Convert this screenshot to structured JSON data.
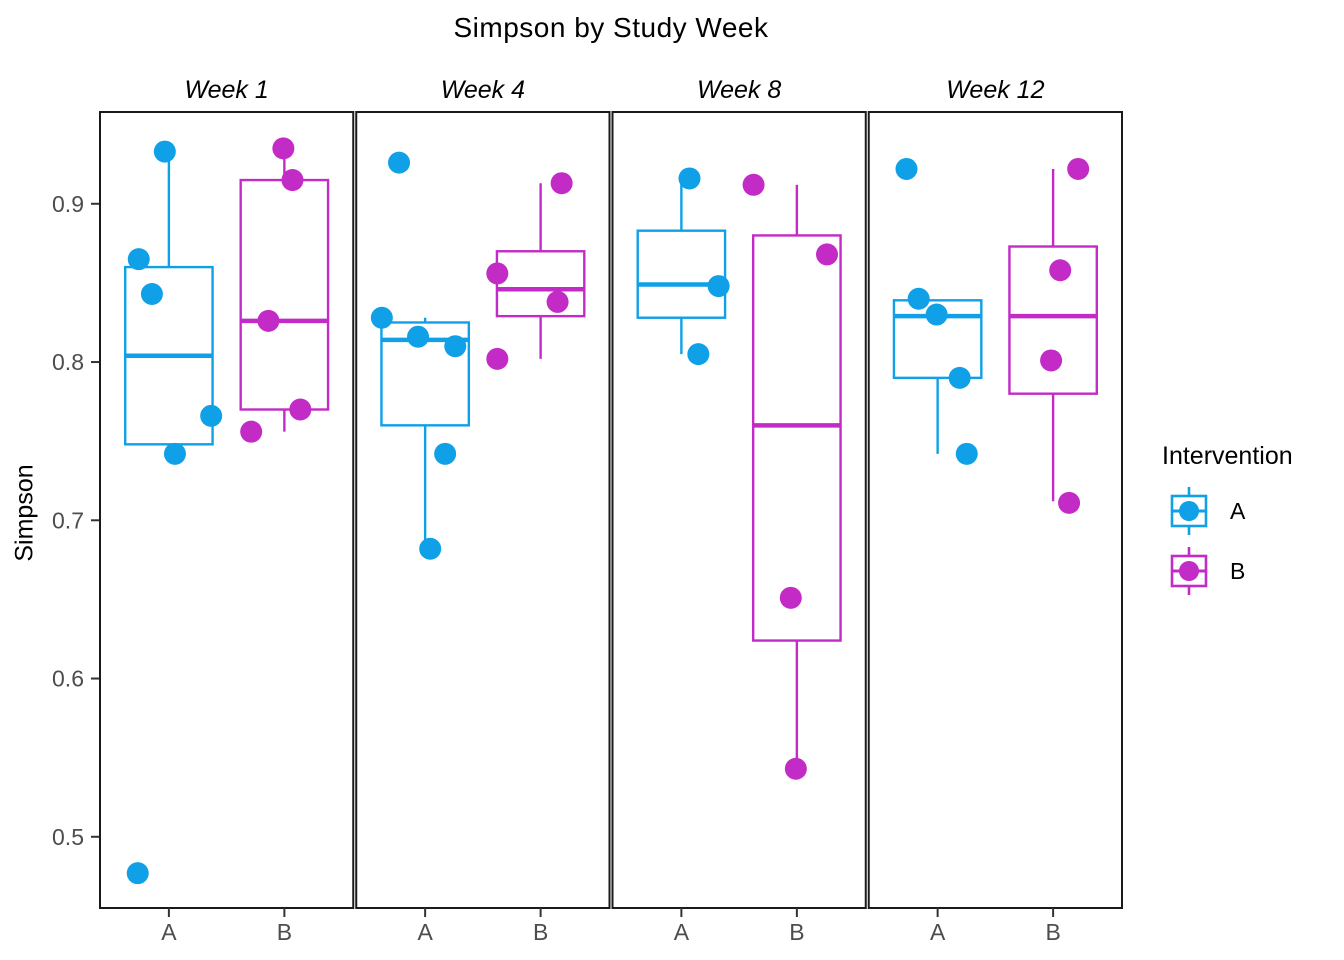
{
  "chart_data": {
    "type": "boxplot",
    "title": "Simpson by Study Week",
    "xlabel": "",
    "ylabel": "Simpson",
    "x_categories": [
      "A",
      "B"
    ],
    "y_ticks": [
      0.5,
      0.6,
      0.7,
      0.8,
      0.9
    ],
    "y_domain": [
      0.455,
      0.958
    ],
    "grid": "off",
    "legend_position": "right",
    "panel_border_color": "#1a1a1a",
    "axis_text_color": "#4d4d4d",
    "colors": {
      "A": "#0FA0E8",
      "B": "#C32BC7"
    },
    "legend": {
      "title": "Intervention",
      "entries": [
        {
          "label": "A",
          "color": "#0FA0E8"
        },
        {
          "label": "B",
          "color": "#C32BC7"
        }
      ]
    },
    "facets": [
      {
        "label": "Week 1",
        "groups": [
          {
            "name": "A",
            "color_key": "A",
            "q1": 0.748,
            "median": 0.804,
            "q3": 0.86,
            "whisker_low": 0.742,
            "whisker_high": 0.933,
            "points": [
              {
                "y": 0.933,
                "jitter": -0.016
              },
              {
                "y": 0.865,
                "jitter": -0.119
              },
              {
                "y": 0.843,
                "jitter": -0.067
              },
              {
                "y": 0.766,
                "jitter": 0.167
              },
              {
                "y": 0.742,
                "jitter": 0.024
              },
              {
                "y": 0.477,
                "jitter": -0.123
              }
            ]
          },
          {
            "name": "B",
            "color_key": "B",
            "q1": 0.77,
            "median": 0.826,
            "q3": 0.915,
            "whisker_low": 0.756,
            "whisker_high": 0.935,
            "points": [
              {
                "y": 0.935,
                "jitter": -0.004
              },
              {
                "y": 0.915,
                "jitter": 0.032
              },
              {
                "y": 0.826,
                "jitter": -0.063
              },
              {
                "y": 0.77,
                "jitter": 0.063
              },
              {
                "y": 0.756,
                "jitter": -0.131
              }
            ]
          }
        ]
      },
      {
        "label": "Week 4",
        "groups": [
          {
            "name": "A",
            "color_key": "A",
            "q1": 0.76,
            "median": 0.814,
            "q3": 0.825,
            "whisker_low": 0.682,
            "whisker_high": 0.828,
            "points": [
              {
                "y": 0.926,
                "jitter": -0.103
              },
              {
                "y": 0.828,
                "jitter": -0.171
              },
              {
                "y": 0.816,
                "jitter": -0.028
              },
              {
                "y": 0.81,
                "jitter": 0.119
              },
              {
                "y": 0.742,
                "jitter": 0.079
              },
              {
                "y": 0.682,
                "jitter": 0.02
              }
            ]
          },
          {
            "name": "B",
            "color_key": "B",
            "q1": 0.829,
            "median": 0.846,
            "q3": 0.87,
            "whisker_low": 0.802,
            "whisker_high": 0.913,
            "points": [
              {
                "y": 0.913,
                "jitter": 0.083
              },
              {
                "y": 0.856,
                "jitter": -0.171
              },
              {
                "y": 0.838,
                "jitter": 0.067
              },
              {
                "y": 0.802,
                "jitter": -0.171
              }
            ]
          }
        ]
      },
      {
        "label": "Week 8",
        "groups": [
          {
            "name": "A",
            "color_key": "A",
            "q1": 0.828,
            "median": 0.849,
            "q3": 0.883,
            "whisker_low": 0.805,
            "whisker_high": 0.916,
            "points": [
              {
                "y": 0.916,
                "jitter": 0.032
              },
              {
                "y": 0.848,
                "jitter": 0.147
              },
              {
                "y": 0.805,
                "jitter": 0.067
              }
            ]
          },
          {
            "name": "B",
            "color_key": "B",
            "q1": 0.624,
            "median": 0.76,
            "q3": 0.88,
            "whisker_low": 0.543,
            "whisker_high": 0.912,
            "points": [
              {
                "y": 0.912,
                "jitter": -0.171
              },
              {
                "y": 0.868,
                "jitter": 0.119
              },
              {
                "y": 0.651,
                "jitter": -0.024
              },
              {
                "y": 0.543,
                "jitter": -0.004
              }
            ]
          }
        ]
      },
      {
        "label": "Week 12",
        "groups": [
          {
            "name": "A",
            "color_key": "A",
            "q1": 0.79,
            "median": 0.829,
            "q3": 0.839,
            "whisker_low": 0.742,
            "whisker_high": 0.839,
            "points": [
              {
                "y": 0.922,
                "jitter": -0.123
              },
              {
                "y": 0.84,
                "jitter": -0.075
              },
              {
                "y": 0.83,
                "jitter": -0.004
              },
              {
                "y": 0.79,
                "jitter": 0.087
              },
              {
                "y": 0.742,
                "jitter": 0.115
              }
            ]
          },
          {
            "name": "B",
            "color_key": "B",
            "q1": 0.78,
            "median": 0.829,
            "q3": 0.873,
            "whisker_low": 0.712,
            "whisker_high": 0.922,
            "points": [
              {
                "y": 0.922,
                "jitter": 0.099
              },
              {
                "y": 0.858,
                "jitter": 0.028
              },
              {
                "y": 0.801,
                "jitter": -0.008
              },
              {
                "y": 0.711,
                "jitter": 0.063
              }
            ]
          }
        ]
      }
    ]
  }
}
